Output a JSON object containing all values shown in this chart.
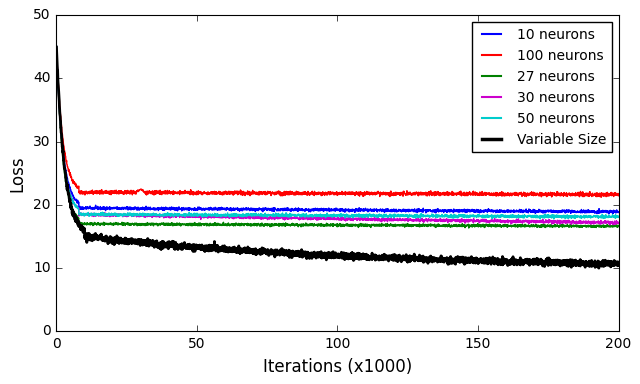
{
  "title": "",
  "xlabel": "Iterations (x1000)",
  "ylabel": "Loss",
  "xlim": [
    0,
    200
  ],
  "ylim": [
    0,
    50
  ],
  "xticks": [
    0,
    50,
    100,
    150,
    200
  ],
  "yticks": [
    0,
    10,
    20,
    30,
    40,
    50
  ],
  "curves": [
    {
      "label": "10 neurons",
      "color": "#0000ff",
      "init_val": 45,
      "drop_end_x": 8,
      "drop_end_y": 19.5,
      "plateau": 18.0,
      "plateau_slope": 0.005,
      "noise": 0.12,
      "lw": 1.0,
      "spike_x": null,
      "spike_val": null
    },
    {
      "label": "100 neurons",
      "color": "#ff0000",
      "init_val": 45,
      "drop_end_x": 8,
      "drop_end_y": 22.0,
      "plateau": 20.0,
      "plateau_slope": 0.002,
      "noise": 0.15,
      "lw": 1.0,
      "spike_x": 30,
      "spike_val": 22.5
    },
    {
      "label": "27 neurons",
      "color": "#008000",
      "init_val": 45,
      "drop_end_x": 8,
      "drop_end_y": 17.0,
      "plateau": 15.5,
      "plateau_slope": 0.003,
      "noise": 0.1,
      "lw": 1.0,
      "spike_x": null,
      "spike_val": null
    },
    {
      "label": "30 neurons",
      "color": "#cc00cc",
      "init_val": 45,
      "drop_end_x": 8,
      "drop_end_y": 18.5,
      "plateau": 14.5,
      "plateau_slope": 0.004,
      "noise": 0.12,
      "lw": 1.0,
      "spike_x": null,
      "spike_val": null
    },
    {
      "label": "50 neurons",
      "color": "#00cccc",
      "init_val": 45,
      "drop_end_x": 8,
      "drop_end_y": 18.5,
      "plateau": 17.0,
      "plateau_slope": 0.003,
      "noise": 0.12,
      "lw": 1.0,
      "spike_x": null,
      "spike_val": null
    },
    {
      "label": "Variable Size",
      "color": "#000000",
      "init_val": 45,
      "drop_end_x": 10,
      "drop_end_y": 15.0,
      "plateau": 10.0,
      "plateau_slope": 0.02,
      "noise": 0.25,
      "lw": 2.0,
      "spike_x": null,
      "spike_val": null
    }
  ],
  "background_color": "#ffffff",
  "legend_fontsize": 10,
  "axis_fontsize": 12,
  "tick_fontsize": 10
}
